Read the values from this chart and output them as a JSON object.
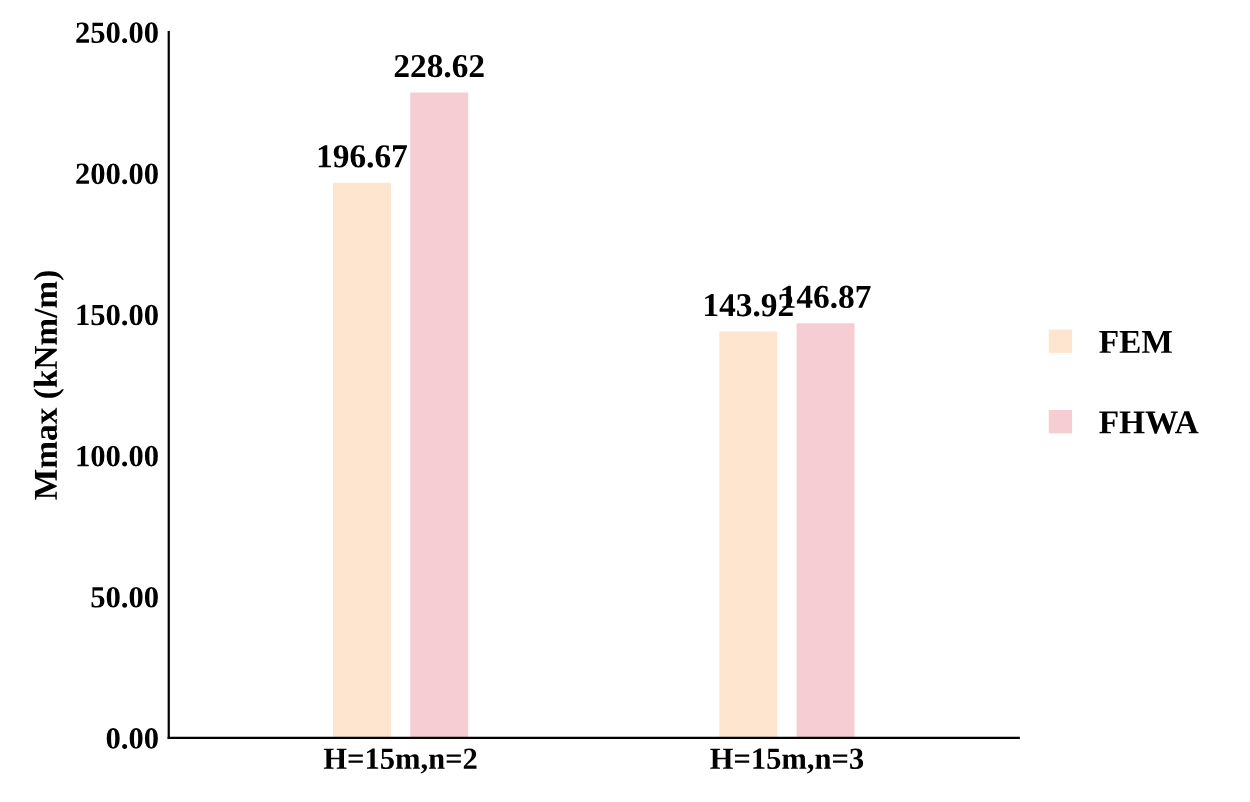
{
  "chart_data": {
    "type": "bar",
    "ylabel": "Mmax (kNm/m)",
    "categories": [
      "H=15m,n=2",
      "H=15m,n=3"
    ],
    "series": [
      {
        "name": "FEM",
        "color": "#fde5cf",
        "values": [
          196.67,
          143.92
        ]
      },
      {
        "name": "FHWA",
        "color": "#f5cdd3",
        "values": [
          228.62,
          146.87
        ]
      }
    ],
    "ylim": [
      0,
      250
    ],
    "yticks": [
      {
        "value": 0,
        "label": "0.00"
      },
      {
        "value": 50,
        "label": "50.00"
      },
      {
        "value": 100,
        "label": "100.00"
      },
      {
        "value": 150,
        "label": "150.00"
      },
      {
        "value": 200,
        "label": "200.00"
      },
      {
        "value": 250,
        "label": "250.00"
      }
    ],
    "data_labels": true,
    "legend": "right",
    "grid": false
  }
}
